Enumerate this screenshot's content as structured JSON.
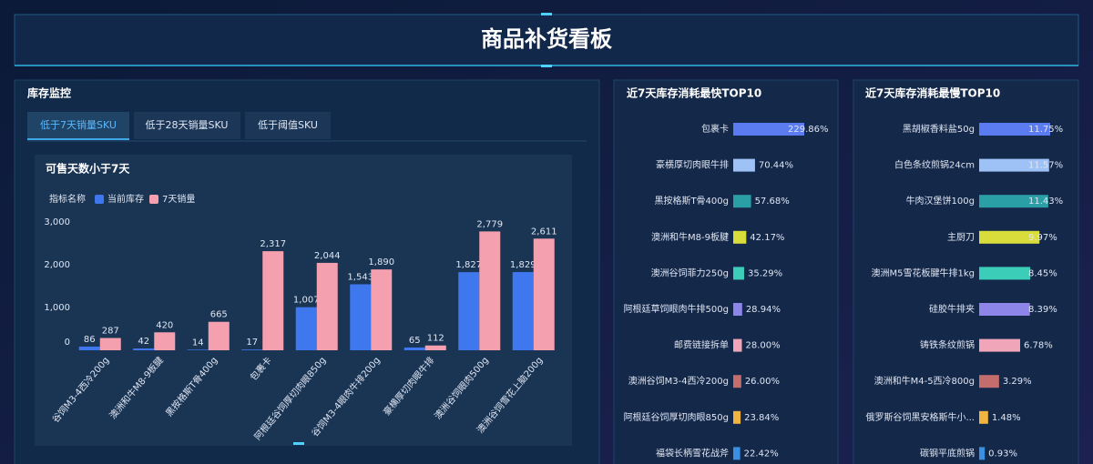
{
  "header": {
    "title": "商品补货看板"
  },
  "inventory": {
    "title": "库存监控",
    "tabs": [
      "低于7天销量SKU",
      "低于28天销量SKU",
      "低于阈值SKU"
    ]
  },
  "chart_data": [
    {
      "type": "bar",
      "title": "可售天数小于7天",
      "legend_title": "指标名称",
      "categories": [
        "谷饲M3-4西冷200g",
        "澳洲和牛M8-9板腱",
        "黑按格斯T骨400g",
        "包裹卡",
        "阿根廷谷饲厚切肉眼850g",
        "谷饲M3-4眼肉牛排200g",
        "豪横厚切肉眼牛排",
        "澳洲谷饲眼肉500g",
        "澳洲谷饲雪花上脑200g"
      ],
      "series": [
        {
          "name": "当前库存",
          "color": "#3f78ee",
          "values": [
            86,
            42,
            14,
            17,
            1007,
            1543,
            65,
            1827,
            1829
          ],
          "value_labels": [
            "86",
            "42",
            "14",
            "17",
            "1,007",
            "1,543",
            "65",
            "1,827",
            "1,829"
          ]
        },
        {
          "name": "7天销量",
          "color": "#f5a0ae",
          "values": [
            287,
            420,
            665,
            2317,
            2044,
            1890,
            112,
            2779,
            2611
          ],
          "value_labels": [
            "287",
            "420",
            "665",
            "2,317",
            "2,044",
            "1,890",
            "112",
            "2,779",
            "2,611"
          ]
        }
      ],
      "ylim": [
        0,
        3000
      ],
      "yticks": [
        0,
        {
          "value": 1000,
          "label": "1,000"
        },
        {
          "value": 2000,
          "label": "2,000"
        },
        {
          "value": 3000,
          "label": "3,000"
        }
      ]
    },
    {
      "type": "hbar",
      "title": "近7天库存消耗最快TOP10",
      "categories": [
        "包裹卡",
        "豪横厚切肉眼牛排",
        "黑按格斯T骨400g",
        "澳洲和牛M8-9板腱",
        "澳洲谷饲菲力250g",
        "阿根廷草饲眼肉牛排500g",
        "邮费链接拆单",
        "澳洲谷饲M3-4西冷200g",
        "阿根廷谷饲厚切肉眼850g",
        "福袋长柄雪花战斧"
      ],
      "values": [
        229.86,
        70.44,
        57.68,
        42.17,
        35.29,
        28.94,
        28.0,
        26.0,
        23.84,
        22.42
      ],
      "value_labels": [
        "229.86%",
        "70.44%",
        "57.68%",
        "42.17%",
        "35.29%",
        "28.94%",
        "28.00%",
        "26.00%",
        "23.84%",
        "22.42%"
      ],
      "colors": [
        "#5b7cf0",
        "#9ec2f5",
        "#2aa0a6",
        "#d9dd3c",
        "#3ccdb8",
        "#8d86e8",
        "#f0a6b8",
        "#c46d6d",
        "#f2b440",
        "#3b8fe0"
      ]
    },
    {
      "type": "hbar",
      "title": "近7天库存消耗最慢TOP10",
      "categories": [
        "黑胡椒香料盐50g",
        "白色条纹煎锅24cm",
        "牛肉汉堡饼100g",
        "主厨刀",
        "澳洲M5雪花板腱牛排1kg",
        "硅胶牛排夹",
        "铸铁条纹煎锅",
        "澳洲和牛M4-5西冷800g",
        "俄罗斯谷饲黑安格斯牛小...",
        "碳钢平底煎锅"
      ],
      "values": [
        11.75,
        11.57,
        11.43,
        9.97,
        8.45,
        8.39,
        6.78,
        3.29,
        1.48,
        0.93
      ],
      "value_labels": [
        "11.75%",
        "11.57%",
        "11.43%",
        "9.97%",
        "8.45%",
        "8.39%",
        "6.78%",
        "3.29%",
        "1.48%",
        "0.93%"
      ],
      "colors": [
        "#5b7cf0",
        "#9ec2f5",
        "#2aa0a6",
        "#d9dd3c",
        "#3ccdb8",
        "#8d86e8",
        "#f0a6b8",
        "#c46d6d",
        "#f2b440",
        "#3b8fe0"
      ]
    }
  ]
}
